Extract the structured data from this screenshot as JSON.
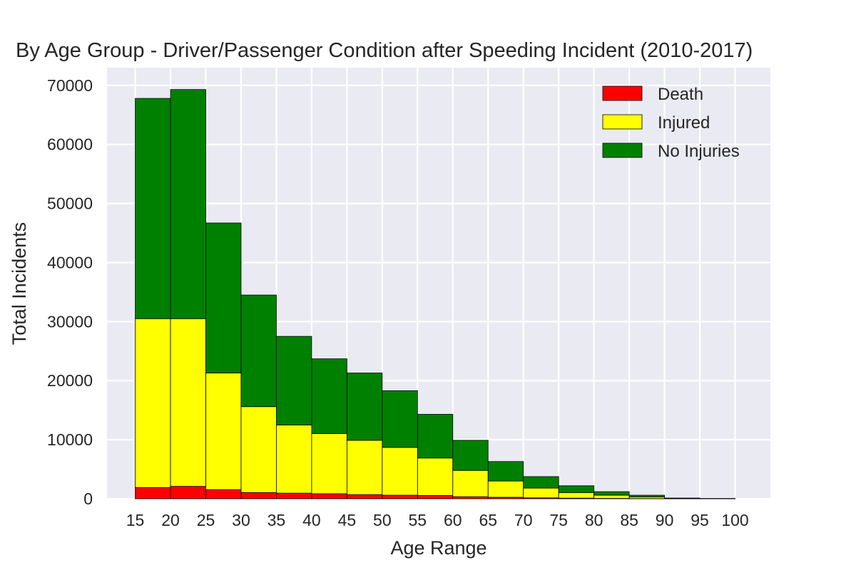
{
  "chart_data": {
    "type": "bar",
    "stacked": true,
    "title": "By Age Group - Driver/Passenger Condition after Speeding Incident (2010-2017)",
    "xlabel": "Age Range",
    "ylabel": "Total Incidents",
    "xlim": [
      11,
      105
    ],
    "ylim": [
      0,
      73000
    ],
    "bin_edges": [
      15,
      20,
      25,
      30,
      35,
      40,
      45,
      50,
      55,
      60,
      65,
      70,
      75,
      80,
      85,
      90,
      95,
      100
    ],
    "x_ticks": [
      15,
      20,
      25,
      30,
      35,
      40,
      45,
      50,
      55,
      60,
      65,
      70,
      75,
      80,
      85,
      90,
      95,
      100
    ],
    "y_ticks": [
      0,
      10000,
      20000,
      30000,
      40000,
      50000,
      60000,
      70000
    ],
    "grid": true,
    "legend_position": "top-right",
    "series": [
      {
        "name": "Death",
        "color": "#ff0000",
        "values": [
          1900,
          2100,
          1550,
          1050,
          950,
          850,
          700,
          600,
          550,
          350,
          250,
          150,
          100,
          60,
          30,
          10,
          5
        ]
      },
      {
        "name": "Injured",
        "color": "#ffff00",
        "values": [
          28600,
          28400,
          19750,
          14550,
          11550,
          10200,
          9200,
          8100,
          6350,
          4450,
          2750,
          1650,
          950,
          540,
          270,
          40,
          15
        ]
      },
      {
        "name": "No Injuries",
        "color": "#008000",
        "values": [
          37300,
          38800,
          25400,
          18900,
          15000,
          12650,
          11400,
          9600,
          7400,
          5100,
          3300,
          1950,
          1150,
          600,
          300,
          70,
          30
        ]
      }
    ]
  }
}
